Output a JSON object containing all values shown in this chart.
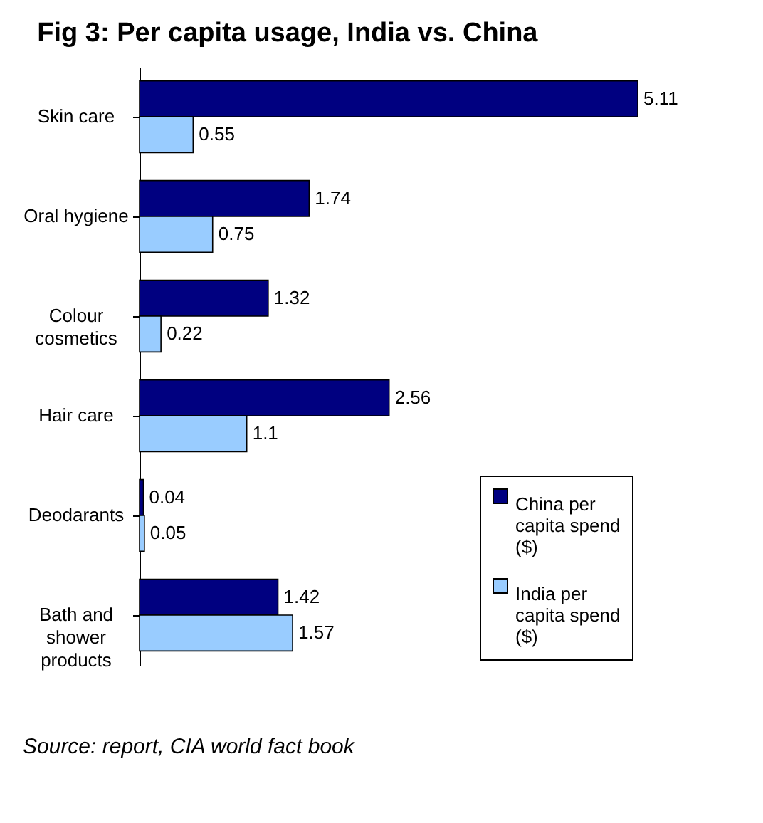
{
  "chart_data": {
    "type": "bar",
    "orientation": "horizontal",
    "title": "Fig 3: Per capita usage, India vs. China",
    "categories": [
      "Skin care",
      "Oral hygiene",
      "Colour cosmetics",
      "Hair care",
      "Deodarants",
      "Bath and shower products"
    ],
    "series": [
      {
        "name": "China per capita spend ($)",
        "color": "#000080",
        "values": [
          5.11,
          1.74,
          1.32,
          2.56,
          0.04,
          1.42
        ]
      },
      {
        "name": "India per capita spend ($)",
        "color": "#99ccff",
        "values": [
          0.55,
          0.75,
          0.22,
          1.1,
          0.05,
          1.57
        ]
      }
    ],
    "data_labels": true,
    "legend": "bottom right",
    "annotations": [
      "Source: report, CIA world fact book"
    ]
  }
}
